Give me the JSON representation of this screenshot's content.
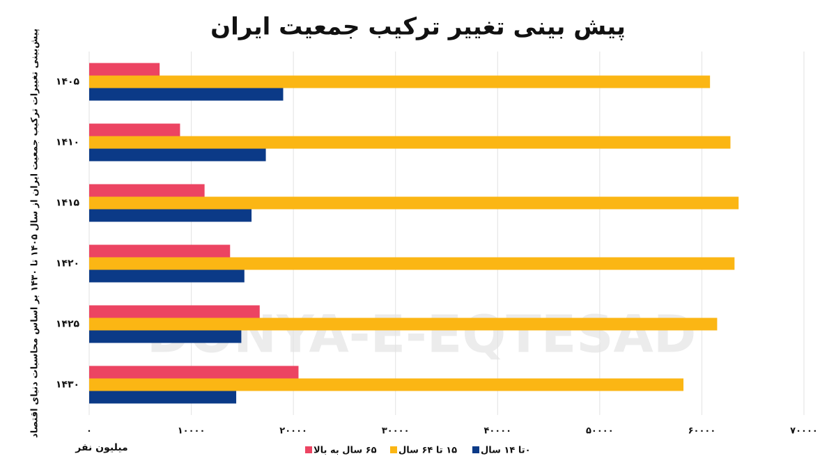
{
  "chart_data": {
    "type": "hbar",
    "title": "پیش بینی تغییر ترکیب جمعیت ایران",
    "y_label": "پیش‌بینی تغییرات ترکیب جمعیت ایران از سال ۱۴۰۵ تا ۱۴۳۰ بر اساس محاسبات دنیای اقتصاد",
    "x_label": "میلیون نفر",
    "watermark": "DONYA-E-EQTESAD",
    "categories": [
      "۱۴۰۵",
      "۱۴۱۰",
      "۱۴۱۵",
      "۱۴۲۰",
      "۱۴۲۵",
      "۱۴۳۰"
    ],
    "series": [
      {
        "name": "۰تا ۱۴ سال",
        "color": "#0b3a87",
        "values": [
          19000,
          17300,
          15900,
          15200,
          14900,
          14400
        ]
      },
      {
        "name": "۱۵ تا ۶۴ سال",
        "color": "#fbb614",
        "values": [
          60800,
          62800,
          63600,
          63200,
          61500,
          58200
        ]
      },
      {
        "name": "۶۵ سال به بالا",
        "color": "#ec4462",
        "values": [
          6900,
          8900,
          11300,
          13800,
          16700,
          20500
        ]
      }
    ],
    "xlim": [
      0,
      70000
    ],
    "xticks": [
      {
        "value": 0,
        "label": "۰"
      },
      {
        "value": 10000,
        "label": "۱۰۰۰۰"
      },
      {
        "value": 20000,
        "label": "۲۰۰۰۰"
      },
      {
        "value": 30000,
        "label": "۳۰۰۰۰"
      },
      {
        "value": 40000,
        "label": "۴۰۰۰۰"
      },
      {
        "value": 50000,
        "label": "۵۰۰۰۰"
      },
      {
        "value": 60000,
        "label": "۶۰۰۰۰"
      },
      {
        "value": 70000,
        "label": "۷۰۰۰۰"
      }
    ],
    "grid": true,
    "legend": "bottom"
  }
}
